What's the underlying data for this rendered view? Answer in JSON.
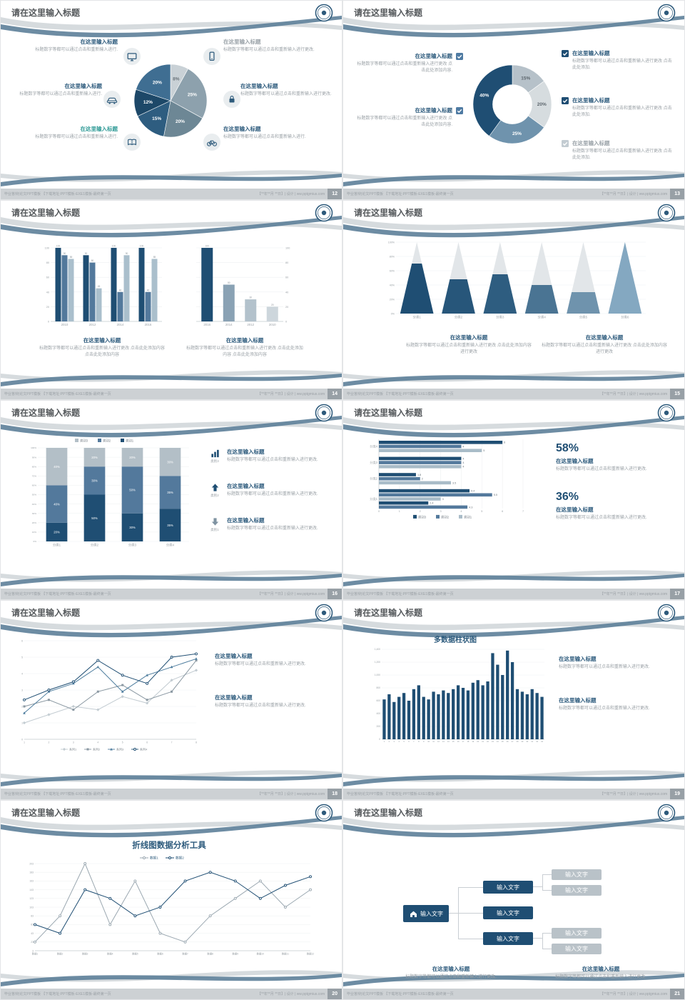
{
  "palette": {
    "navy": "#1f4e73",
    "steel": "#53799c",
    "light_steel": "#a9bcc8",
    "gray_band": "#d6dbde",
    "swoosh_blue": "#5d8099",
    "heading": "#2c5a7c",
    "body_gray": "#9ba2a7",
    "teal": "#2f9a96",
    "muted_title": "#9aa2a8",
    "footer_bg": "#cdd1d4"
  },
  "common": {
    "slide_title": "请在这里输入标题",
    "footer_left": "毕业答辩|论文PPT模板 【下载地址:PPT模板-EXE1模板-最终第一页",
    "footer_right": "【**年**月 **日】| 设计 | ww.pptgmius.com"
  },
  "slides": [
    {
      "num": "12",
      "left_blocks": [
        {
          "title": "在这里输入标题",
          "text": "标题数字等都可以通过点击和重新输入进行."
        },
        {
          "title": "在这里输入标题",
          "text": "标题数字等都可以通过点击和重新输入进行."
        },
        {
          "title": "在这里输入标题",
          "text": "标题数字等都可以通过点击和重新输入进行."
        }
      ],
      "right_blocks": [
        {
          "title": "在这里输入标题",
          "text": "标题数字等都可以通过点击和重新输入进行更改."
        },
        {
          "title": "在这里输入标题",
          "text": "标题数字等都可以通过点击和重新输入进行更改."
        },
        {
          "title": "在这里输入标题",
          "text": "标题数字等都可以通过点击和重新输入进行."
        }
      ],
      "icons": [
        "monitor-icon",
        "car-icon",
        "book-icon",
        "phone-icon",
        "lock-icon",
        "bike-icon"
      ]
    },
    {
      "num": "13",
      "left_blocks": [
        {
          "title": "在这里输入标题",
          "text": "标题数字等都可以通过点击和重新输入进行更改 点击此处添加内容."
        },
        {
          "title": "在这里输入标题",
          "text": "标题数字等都可以通过点击和重新输入进行更改 点击此处添加内容."
        }
      ],
      "right_blocks": [
        {
          "title": "在这里输入标题",
          "text": "标题数字等都可以通过点击和重新输入进行更改 点击此处添加."
        },
        {
          "title": "在这里输入标题",
          "text": "标题数字等都可以通过点击和重新输入进行更改 点击此处添加."
        },
        {
          "title": "在这里输入标题",
          "text": "标题数字等都可以通过点击和重新输入进行更改 点击此处添加."
        }
      ]
    },
    {
      "num": "14",
      "blocks": [
        {
          "title": "在这里输入标题",
          "text": "标题数字等都可以通过点击和重新输入进行更改 点击此处添加内容 点击此处添加内容"
        },
        {
          "title": "在这里输入标题",
          "text": "标题数字等都可以通过点击和重新输入进行更改 点击此处添加内容 点击此处添加内容"
        }
      ]
    },
    {
      "num": "15",
      "blocks": [
        {
          "title": "在这里输入标题",
          "text": "标题数字等都可以通过点击和重新输入进行更改 点击此处添加内容进行更改"
        },
        {
          "title": "在这里输入标题",
          "text": "标题数字等都可以通过点击和重新输入进行更改 点击此处添加内容进行更改"
        }
      ]
    },
    {
      "num": "16",
      "items": [
        {
          "icon": "bar-chart-icon",
          "icon_label": "类别3",
          "title": "在这里输入标题",
          "text": "标题数字等都可以通过点击和重新输入进行更改."
        },
        {
          "icon": "arrow-up-icon",
          "icon_label": "类别2",
          "title": "在这里输入标题",
          "text": "标题数字等都可以通过点击和重新输入进行更改."
        },
        {
          "icon": "arrow-down-icon",
          "icon_label": "类别1",
          "title": "在这里输入标题",
          "text": "标题数字等都可以通过点击和重新输入进行更改."
        }
      ]
    },
    {
      "num": "17",
      "stats": [
        {
          "pct": "58%",
          "title": "在这里输入标题",
          "text": "标题数字等都可以通过点击和重新输入进行更改."
        },
        {
          "pct": "36%",
          "title": "在这里输入标题",
          "text": "标题数字等都可以通过点击和重新输入进行更改."
        }
      ]
    },
    {
      "num": "18",
      "blocks": [
        {
          "title": "在这里输入标题",
          "text": "标题数字等都可以通过点击和重新输入进行更改."
        },
        {
          "title": "在这里输入标题",
          "text": "标题数字等都可以通过点击和重新输入进行更改."
        }
      ]
    },
    {
      "num": "19",
      "blocks": [
        {
          "title": "在这里输入标题",
          "text": "标题数字等都可以通过点击和重新输入进行更改."
        },
        {
          "title": "在这里输入标题",
          "text": "标题数字等都可以通过点击和重新输入进行更改."
        }
      ]
    },
    {
      "num": "20"
    },
    {
      "num": "21",
      "home_label": "输入文字",
      "mid": [
        "输入文字",
        "输入文字",
        "输入文字"
      ],
      "leaf": [
        "输入文字",
        "输入文字",
        "输入文字",
        "输入文字"
      ],
      "blocks": [
        {
          "title": "在这里输入标题",
          "text": "标题数字等都可以通过点击和重新输入进行更改."
        },
        {
          "title": "在这里输入标题",
          "text": "标题数字等都可以通过点击和重新输入进行更改."
        }
      ]
    }
  ],
  "chart_data": {
    "pie12": {
      "type": "pie",
      "values": [
        8,
        25,
        20,
        15,
        12,
        20
      ],
      "labels": [
        "8%",
        "25%",
        "20%",
        "15%",
        "12%",
        "20%"
      ],
      "colors": [
        "#c9d1d6",
        "#8da1ad",
        "#6d8795",
        "#2e5d80",
        "#1d4868",
        "#3f6e92"
      ],
      "label_colors": [
        "#6a737a",
        "#ffffff",
        "#ffffff",
        "#ffffff",
        "#ffffff",
        "#ffffff"
      ],
      "start_angle": -90
    },
    "donut13": {
      "type": "pie",
      "inner_ratio": 0.5,
      "values": [
        15,
        20,
        25,
        40
      ],
      "labels": [
        "15%",
        "20%",
        "25%",
        "40%"
      ],
      "colors": [
        "#b6c1c9",
        "#d6dcdf",
        "#6f93ad",
        "#1f4e73"
      ],
      "label_colors": [
        "#5d666d",
        "#5d666d",
        "#ffffff",
        "#ffffff"
      ],
      "start_angle": -90
    },
    "bars14L": {
      "type": "groupbars",
      "categories": [
        "2010",
        "2012",
        "2014",
        "2016"
      ],
      "series": [
        {
          "name": "系列1",
          "color": "#1f4e73",
          "values": [
            100,
            90,
            100,
            100
          ]
        },
        {
          "name": "系列2",
          "color": "#53799c",
          "values": [
            90,
            80,
            40,
            40
          ]
        },
        {
          "name": "系列3",
          "color": "#aabfcc",
          "values": [
            85,
            45,
            90,
            85
          ]
        }
      ],
      "ymax": 100,
      "yticks": [
        0,
        20,
        40,
        60,
        80,
        100
      ],
      "show_labels": true
    },
    "bars14R": {
      "type": "groupbars",
      "categories": [
        "2016",
        "2014",
        "2012",
        "2010"
      ],
      "series": [
        {
          "name": "数据",
          "color": null,
          "values": [
            100,
            50,
            30,
            20
          ]
        }
      ],
      "colors": [
        "#1f4e73",
        "#8aa2b4",
        "#b3c2cc",
        "#cdd6dc"
      ],
      "ymax": 100,
      "yticks": [
        0,
        20,
        40,
        60,
        80,
        100
      ],
      "right_axis": true,
      "show_labels": true
    },
    "pyr15": {
      "type": "pyramid",
      "categories": [
        "分类1",
        "分类2",
        "分类3",
        "分类4",
        "分类5",
        "分类6"
      ],
      "fill_pct": [
        70,
        48,
        55,
        40,
        30,
        100
      ],
      "colors": [
        "#1f4e73",
        "#27567a",
        "#2e5d80",
        "#4a7493",
        "#6f93ad",
        "#84a8c1"
      ],
      "top_color": "#e2e6e9",
      "yticks": [
        "0%",
        "20%",
        "40%",
        "60%",
        "80%",
        "100%"
      ]
    },
    "stk16": {
      "type": "stacked",
      "categories": [
        "分类1",
        "分类2",
        "分类3",
        "分类4"
      ],
      "series": [
        {
          "name": "类别1",
          "color": "#1f4e73",
          "values": [
            20,
            50,
            30,
            35
          ]
        },
        {
          "name": "类别2",
          "color": "#53799c",
          "values": [
            40,
            30,
            50,
            35
          ]
        },
        {
          "name": "类别3",
          "color": "#b3bfc7",
          "values": [
            40,
            20,
            20,
            30
          ]
        }
      ],
      "legend": [
        "类别3",
        "类别2",
        "类别1"
      ],
      "yticks": [
        "0%",
        "10%",
        "20%",
        "30%",
        "40%",
        "50%",
        "60%",
        "70%",
        "80%",
        "90%",
        "100%"
      ]
    },
    "hbar17": {
      "type": "hbars",
      "groups": [
        {
          "label": "分类4",
          "bars": [
            {
              "v": 6,
              "c": "#1f4e73"
            },
            {
              "v": 4,
              "c": "#53799c"
            },
            {
              "v": 5,
              "c": "#a9bcc8"
            }
          ]
        },
        {
          "label": "分类3",
          "bars": [
            {
              "v": 4,
              "c": "#1f4e73"
            },
            {
              "v": 4,
              "c": "#53799c"
            },
            {
              "v": 4,
              "c": "#a9bcc8"
            }
          ]
        },
        {
          "label": "分类2",
          "bars": [
            {
              "v": 1.8,
              "c": "#1f4e73"
            },
            {
              "v": 2,
              "c": "#53799c"
            },
            {
              "v": 3.5,
              "c": "#a9bcc8"
            }
          ]
        },
        {
          "label": "分类1",
          "bars": [
            {
              "v": 4.4,
              "c": "#1f4e73"
            },
            {
              "v": 5.5,
              "c": "#53799c"
            },
            {
              "v": 3,
              "c": "#a9bcc8"
            },
            {
              "v": 2.4,
              "c": "#1f4e73"
            },
            {
              "v": 4.3,
              "c": "#53799c"
            }
          ]
        }
      ],
      "xticks": [
        0,
        1,
        2,
        3,
        4,
        5,
        6,
        7
      ],
      "legend": [
        {
          "name": "类别3",
          "color": "#1f4e73"
        },
        {
          "name": "类别2",
          "color": "#53799c"
        },
        {
          "name": "类别1",
          "color": "#a9bcc8"
        }
      ]
    },
    "line18": {
      "type": "lines",
      "x": [
        "1",
        "2",
        "3",
        "4",
        "5",
        "6",
        "7",
        "8"
      ],
      "ymin": 0,
      "ymax": 6,
      "yticks": [
        0,
        1,
        2,
        3,
        4,
        5,
        6
      ],
      "legend_pos": "bottom",
      "series": [
        {
          "name": "系列1",
          "color": "#c3ccd2",
          "marker": "diamond",
          "values": [
            1,
            1.5,
            2,
            1.8,
            2.6,
            2.2,
            3.6,
            4.2
          ]
        },
        {
          "name": "系列2",
          "color": "#8a98a2",
          "marker": "square",
          "values": [
            2,
            2.4,
            1.8,
            2.9,
            3.3,
            2.4,
            2.9,
            4.8
          ]
        },
        {
          "name": "系列3",
          "color": "#4e7d9e",
          "marker": "triangle",
          "values": [
            1.6,
            2.9,
            3.4,
            4.4,
            2.9,
            3.9,
            4.4,
            4.9
          ]
        },
        {
          "name": "系列4",
          "color": "#1f4e73",
          "marker": "circle",
          "values": [
            2.4,
            3,
            3.5,
            4.8,
            3.9,
            3.4,
            5,
            5.2
          ]
        }
      ]
    },
    "col19": {
      "type": "columns",
      "title": "多数据柱状图",
      "color": "#1f4e73",
      "ymax": 1400,
      "yticks": [
        "0",
        "200",
        "400",
        "600",
        "800",
        "1,000",
        "1,200",
        "1,400"
      ],
      "values": [
        620,
        700,
        580,
        660,
        720,
        600,
        780,
        840,
        660,
        620,
        740,
        700,
        760,
        720,
        780,
        840,
        800,
        760,
        880,
        920,
        840,
        900,
        1340,
        1160,
        1000,
        1380,
        1200,
        780,
        740,
        700,
        780,
        720,
        660
      ]
    },
    "line20": {
      "type": "lines",
      "title": "折线图数据分析工具",
      "x": [
        "数据1",
        "数据2",
        "数据3",
        "数据4",
        "数据5",
        "数据6",
        "数据7",
        "数据8",
        "数据9",
        "数据10",
        "数据11",
        "数据12"
      ],
      "ymin": 3,
      "ymax": 203,
      "yticks": [
        "203",
        "183",
        "163",
        "143",
        "123",
        "103",
        "83",
        "63",
        "43",
        "23",
        "3"
      ],
      "legend_pos": "top",
      "ylabels_wide": true,
      "series": [
        {
          "name": "数据1",
          "color": "#9aa7b0",
          "marker": "circle",
          "values": [
            23,
            83,
            203,
            63,
            163,
            43,
            23,
            83,
            123,
            163,
            103,
            143
          ]
        },
        {
          "name": "数据2",
          "color": "#1f4e73",
          "marker": "circle",
          "values": [
            63,
            43,
            143,
            123,
            83,
            103,
            163,
            183,
            163,
            123,
            153,
            173
          ]
        }
      ]
    }
  }
}
